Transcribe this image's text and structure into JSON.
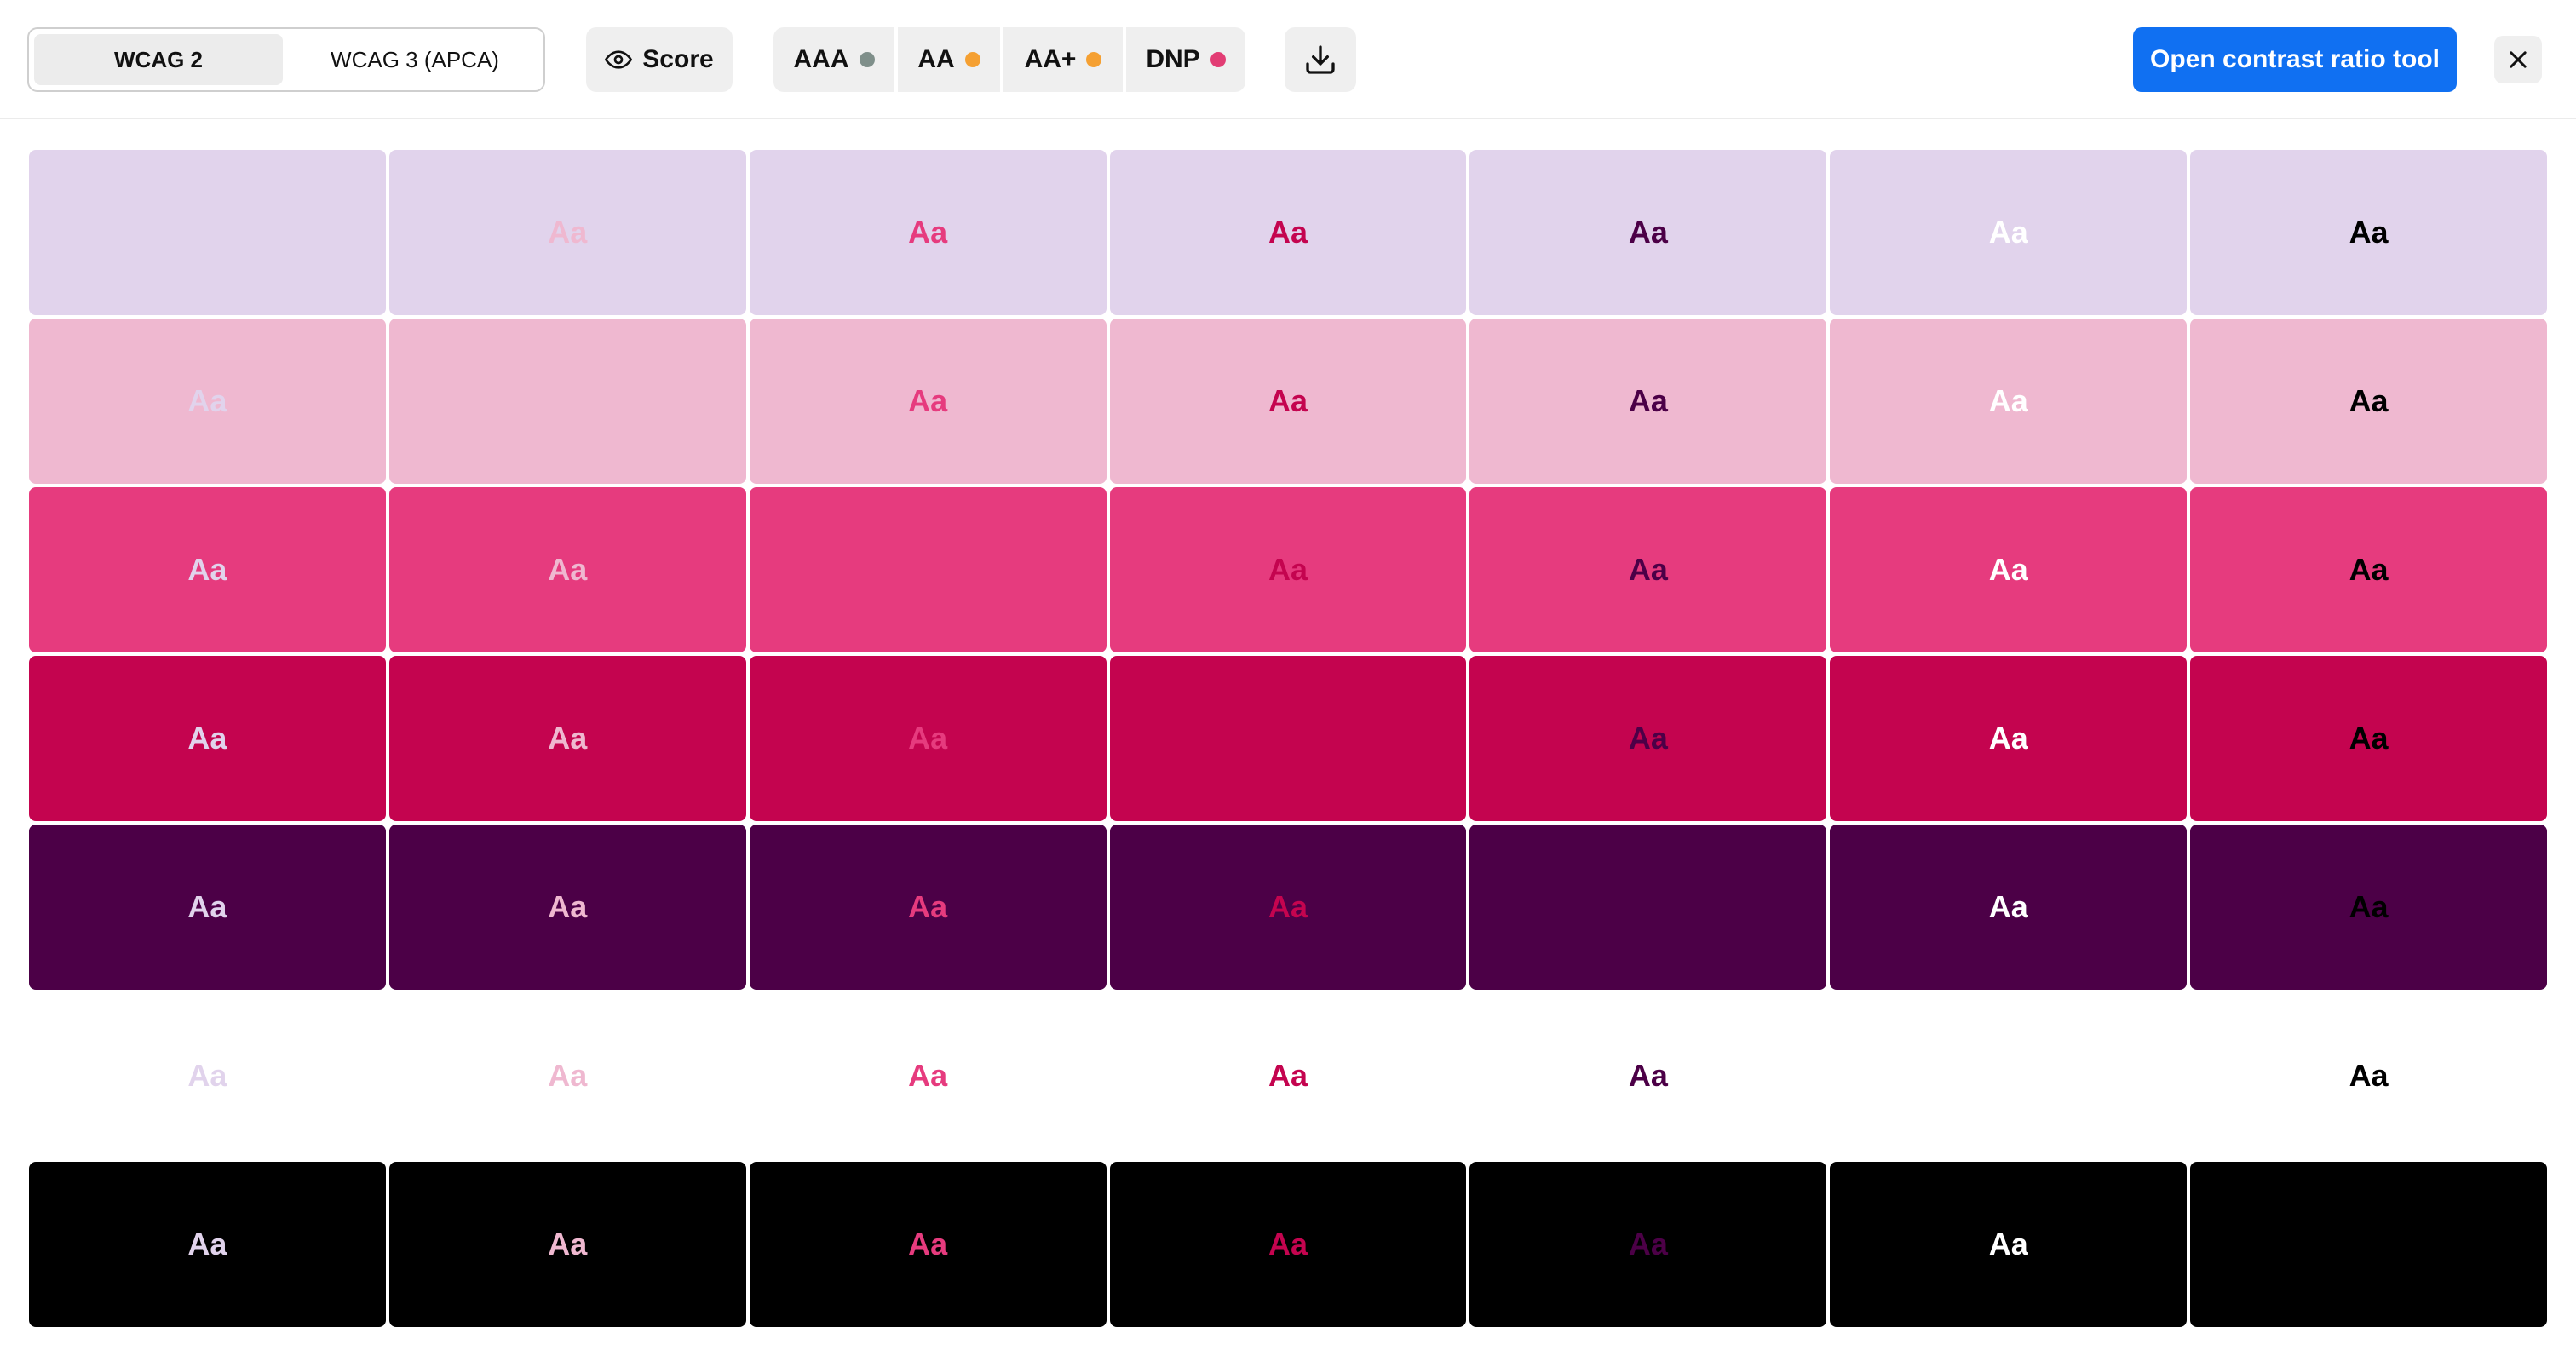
{
  "toolbar": {
    "tabs": [
      {
        "label": "WCAG 2",
        "active": true
      },
      {
        "label": "WCAG 3 (APCA)",
        "active": false
      }
    ],
    "score_label": "Score",
    "score_icon": "eye-icon",
    "badges": [
      {
        "label": "AAA",
        "dot_color": "#7f8f8a"
      },
      {
        "label": "AA",
        "dot_color": "#f5a032"
      },
      {
        "label": "AA+",
        "dot_color": "#f5a032"
      },
      {
        "label": "DNP",
        "dot_color": "#e23d74"
      }
    ],
    "download_icon": "download-icon",
    "primary_button": "Open contrast ratio tool",
    "close_icon": "close-icon"
  },
  "palette": [
    {
      "name": "lavender",
      "hex": "#e1d3ec"
    },
    {
      "name": "light-pink",
      "hex": "#efb8d0"
    },
    {
      "name": "pink",
      "hex": "#e63b7e"
    },
    {
      "name": "crimson",
      "hex": "#c4044f"
    },
    {
      "name": "plum",
      "hex": "#4c0047"
    },
    {
      "name": "white",
      "hex": "#ffffff"
    },
    {
      "name": "black",
      "hex": "#000000"
    }
  ],
  "sample_text": "Aa"
}
